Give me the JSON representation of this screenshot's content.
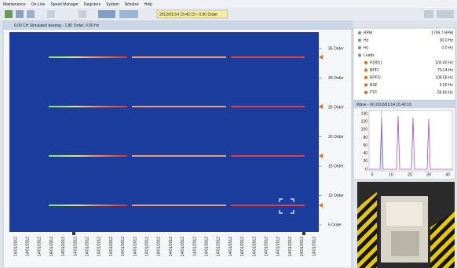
{
  "menu": [
    "Maintenance",
    "On-Line",
    "Speed Manager",
    "Registers",
    "System",
    "Window",
    "Help"
  ],
  "toolbar": {
    "timestamp": "2012/01/14 15:42:15 - 0.00 Order"
  },
  "waterfall": {
    "title": "0.00 CH Simulated bearing - 1.80 Order, 0.00 Hz",
    "y_labels": [
      "35 Order",
      "30 Order",
      "25 Order",
      "20 Order",
      "15 Order",
      "10 Order",
      "5 Order"
    ],
    "x_labels": [
      "14/01/2012",
      "14/01/2012",
      "14/01/2012",
      "14/01/2012",
      "14/01/2012",
      "14/01/2012",
      "14/01/2012",
      "14/01/2012",
      "14/01/2012",
      "14/01/2012",
      "14/01/2012",
      "14/01/2012",
      "14/01/2012",
      "14/01/2012",
      "14/01/2012",
      "14/01/2012",
      "14/01/2012",
      "14/01/2012",
      "14/01/2012",
      "14/01/2012",
      "14/01/2012",
      "14/01/2012",
      "14/01/2012",
      "14/01/2012",
      "14/01/2012",
      "14/01/2012"
    ]
  },
  "tree": {
    "rows": [
      {
        "label": "RPM",
        "value": "1799.7 RPM"
      },
      {
        "label": "Hz",
        "value": "30.0 Hz"
      },
      {
        "label": "Hz",
        "value": "0.0 Hz"
      },
      {
        "label": "Loads",
        "value": ""
      },
      {
        "label": "P(001)",
        "value": "100.40 Hz"
      },
      {
        "label": "BPFI",
        "value": "70.14 Hz"
      },
      {
        "label": "BPFO",
        "value": "108.58 Hz"
      },
      {
        "label": "BSF",
        "value": "0.00 Hz"
      },
      {
        "label": "FTF",
        "value": "58.80 Hz"
      }
    ]
  },
  "spectrum": {
    "title": "Wave - 00 2012/01/14 15:42:15",
    "yticks": [
      "140",
      "120",
      "100",
      "80",
      "60",
      "40",
      "20",
      "0"
    ],
    "xticks": [
      "0",
      "10",
      "20",
      "30",
      "40"
    ]
  }
}
